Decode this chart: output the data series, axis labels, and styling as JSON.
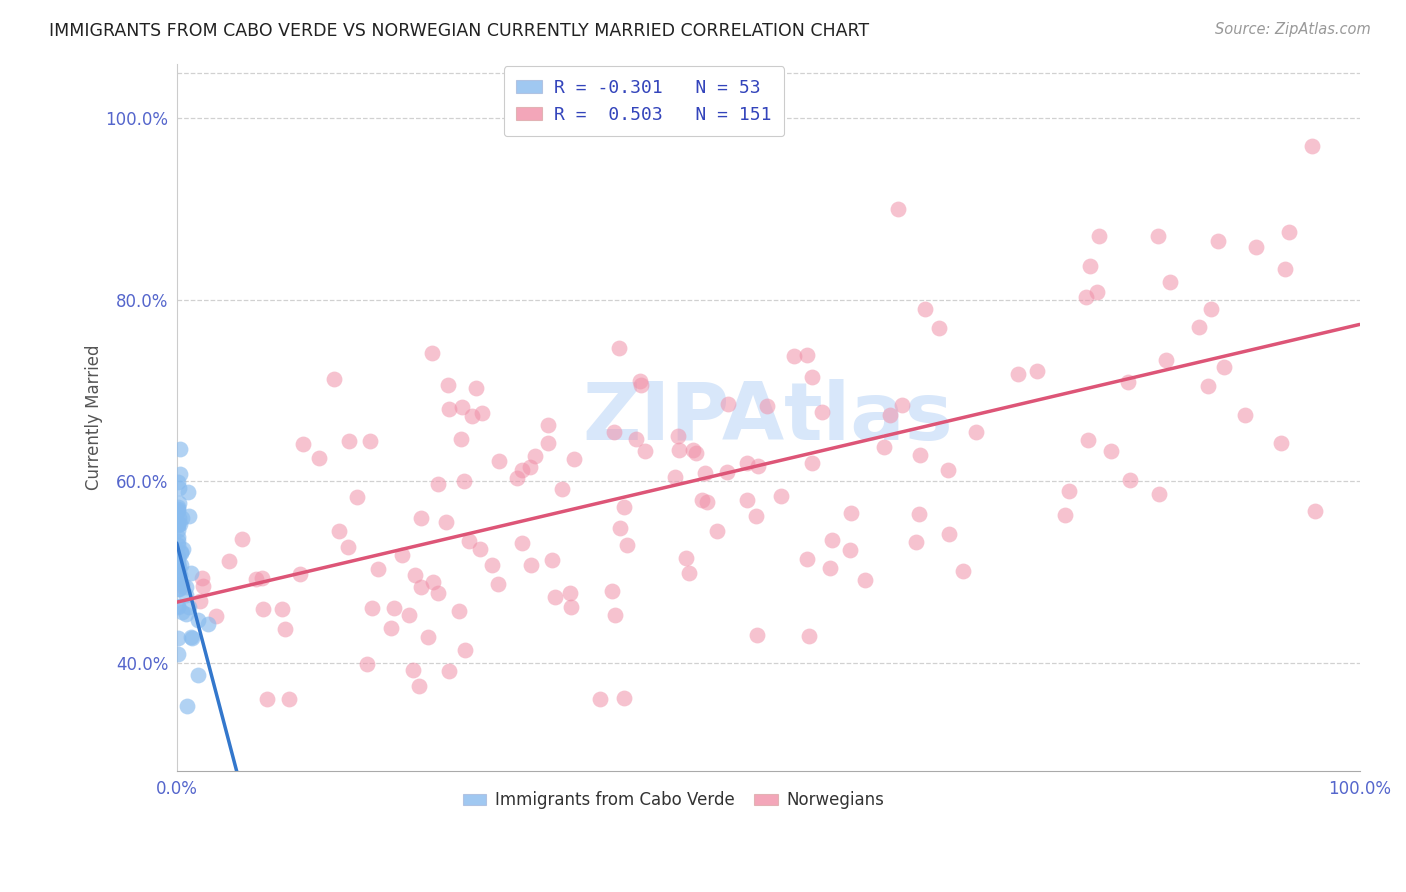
{
  "title": "IMMIGRANTS FROM CABO VERDE VS NORWEGIAN CURRENTLY MARRIED CORRELATION CHART",
  "source": "Source: ZipAtlas.com",
  "ylabel_label": "Currently Married",
  "cabo_verde_R": -0.301,
  "cabo_verde_N": 53,
  "norwegian_R": 0.503,
  "norwegian_N": 151,
  "cabo_verde_color": "#88bbee",
  "norwegian_color": "#f090a8",
  "cabo_verde_line_color": "#3377cc",
  "norwegian_line_color": "#dd5577",
  "background_color": "#ffffff",
  "grid_color": "#cccccc",
  "title_color": "#222222",
  "source_color": "#999999",
  "tick_color": "#5566cc",
  "ylabel_color": "#555555",
  "watermark_color": "#c8ddf8",
  "xlim": [
    0.0,
    1.0
  ],
  "ylim": [
    0.28,
    1.06
  ],
  "yticks": [
    0.4,
    0.6,
    0.8,
    1.0
  ],
  "xticks": [
    0.0,
    1.0
  ]
}
